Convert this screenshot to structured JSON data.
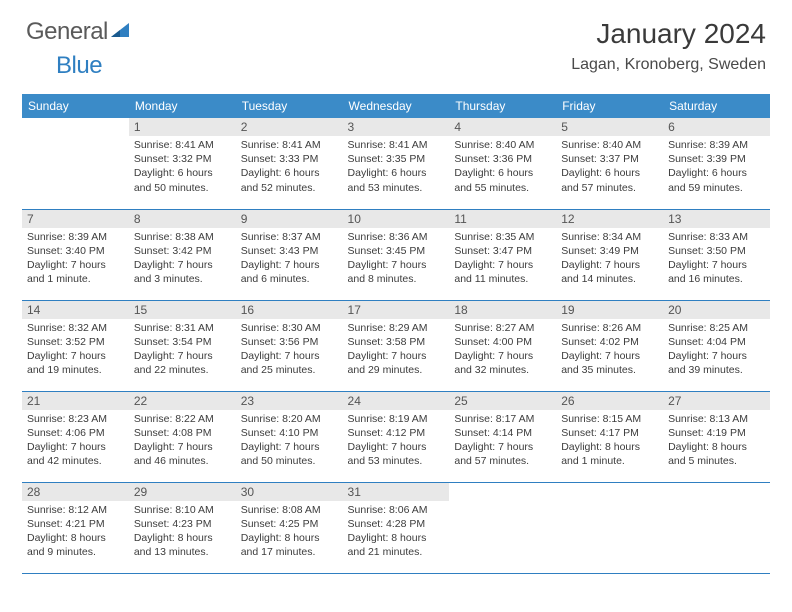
{
  "brand": {
    "part1": "General",
    "part2": "Blue"
  },
  "title": "January 2024",
  "location": "Lagan, Kronoberg, Sweden",
  "colors": {
    "header_bg": "#3b8bc8",
    "header_text": "#ffffff",
    "daynum_bg": "#e8e8e8",
    "border": "#2f7fc1",
    "body_text": "#3c3c3c",
    "title_text": "#3a3a3a",
    "logo_gray": "#5a5a5a",
    "logo_blue": "#2f7fc1"
  },
  "weekdays": [
    "Sunday",
    "Monday",
    "Tuesday",
    "Wednesday",
    "Thursday",
    "Friday",
    "Saturday"
  ],
  "weeks": [
    [
      null,
      {
        "n": "1",
        "sr": "8:41 AM",
        "ss": "3:32 PM",
        "dl": "6 hours and 50 minutes."
      },
      {
        "n": "2",
        "sr": "8:41 AM",
        "ss": "3:33 PM",
        "dl": "6 hours and 52 minutes."
      },
      {
        "n": "3",
        "sr": "8:41 AM",
        "ss": "3:35 PM",
        "dl": "6 hours and 53 minutes."
      },
      {
        "n": "4",
        "sr": "8:40 AM",
        "ss": "3:36 PM",
        "dl": "6 hours and 55 minutes."
      },
      {
        "n": "5",
        "sr": "8:40 AM",
        "ss": "3:37 PM",
        "dl": "6 hours and 57 minutes."
      },
      {
        "n": "6",
        "sr": "8:39 AM",
        "ss": "3:39 PM",
        "dl": "6 hours and 59 minutes."
      }
    ],
    [
      {
        "n": "7",
        "sr": "8:39 AM",
        "ss": "3:40 PM",
        "dl": "7 hours and 1 minute."
      },
      {
        "n": "8",
        "sr": "8:38 AM",
        "ss": "3:42 PM",
        "dl": "7 hours and 3 minutes."
      },
      {
        "n": "9",
        "sr": "8:37 AM",
        "ss": "3:43 PM",
        "dl": "7 hours and 6 minutes."
      },
      {
        "n": "10",
        "sr": "8:36 AM",
        "ss": "3:45 PM",
        "dl": "7 hours and 8 minutes."
      },
      {
        "n": "11",
        "sr": "8:35 AM",
        "ss": "3:47 PM",
        "dl": "7 hours and 11 minutes."
      },
      {
        "n": "12",
        "sr": "8:34 AM",
        "ss": "3:49 PM",
        "dl": "7 hours and 14 minutes."
      },
      {
        "n": "13",
        "sr": "8:33 AM",
        "ss": "3:50 PM",
        "dl": "7 hours and 16 minutes."
      }
    ],
    [
      {
        "n": "14",
        "sr": "8:32 AM",
        "ss": "3:52 PM",
        "dl": "7 hours and 19 minutes."
      },
      {
        "n": "15",
        "sr": "8:31 AM",
        "ss": "3:54 PM",
        "dl": "7 hours and 22 minutes."
      },
      {
        "n": "16",
        "sr": "8:30 AM",
        "ss": "3:56 PM",
        "dl": "7 hours and 25 minutes."
      },
      {
        "n": "17",
        "sr": "8:29 AM",
        "ss": "3:58 PM",
        "dl": "7 hours and 29 minutes."
      },
      {
        "n": "18",
        "sr": "8:27 AM",
        "ss": "4:00 PM",
        "dl": "7 hours and 32 minutes."
      },
      {
        "n": "19",
        "sr": "8:26 AM",
        "ss": "4:02 PM",
        "dl": "7 hours and 35 minutes."
      },
      {
        "n": "20",
        "sr": "8:25 AM",
        "ss": "4:04 PM",
        "dl": "7 hours and 39 minutes."
      }
    ],
    [
      {
        "n": "21",
        "sr": "8:23 AM",
        "ss": "4:06 PM",
        "dl": "7 hours and 42 minutes."
      },
      {
        "n": "22",
        "sr": "8:22 AM",
        "ss": "4:08 PM",
        "dl": "7 hours and 46 minutes."
      },
      {
        "n": "23",
        "sr": "8:20 AM",
        "ss": "4:10 PM",
        "dl": "7 hours and 50 minutes."
      },
      {
        "n": "24",
        "sr": "8:19 AM",
        "ss": "4:12 PM",
        "dl": "7 hours and 53 minutes."
      },
      {
        "n": "25",
        "sr": "8:17 AM",
        "ss": "4:14 PM",
        "dl": "7 hours and 57 minutes."
      },
      {
        "n": "26",
        "sr": "8:15 AM",
        "ss": "4:17 PM",
        "dl": "8 hours and 1 minute."
      },
      {
        "n": "27",
        "sr": "8:13 AM",
        "ss": "4:19 PM",
        "dl": "8 hours and 5 minutes."
      }
    ],
    [
      {
        "n": "28",
        "sr": "8:12 AM",
        "ss": "4:21 PM",
        "dl": "8 hours and 9 minutes."
      },
      {
        "n": "29",
        "sr": "8:10 AM",
        "ss": "4:23 PM",
        "dl": "8 hours and 13 minutes."
      },
      {
        "n": "30",
        "sr": "8:08 AM",
        "ss": "4:25 PM",
        "dl": "8 hours and 17 minutes."
      },
      {
        "n": "31",
        "sr": "8:06 AM",
        "ss": "4:28 PM",
        "dl": "8 hours and 21 minutes."
      },
      null,
      null,
      null
    ]
  ],
  "labels": {
    "sunrise": "Sunrise: ",
    "sunset": "Sunset: ",
    "daylight": "Daylight: "
  }
}
